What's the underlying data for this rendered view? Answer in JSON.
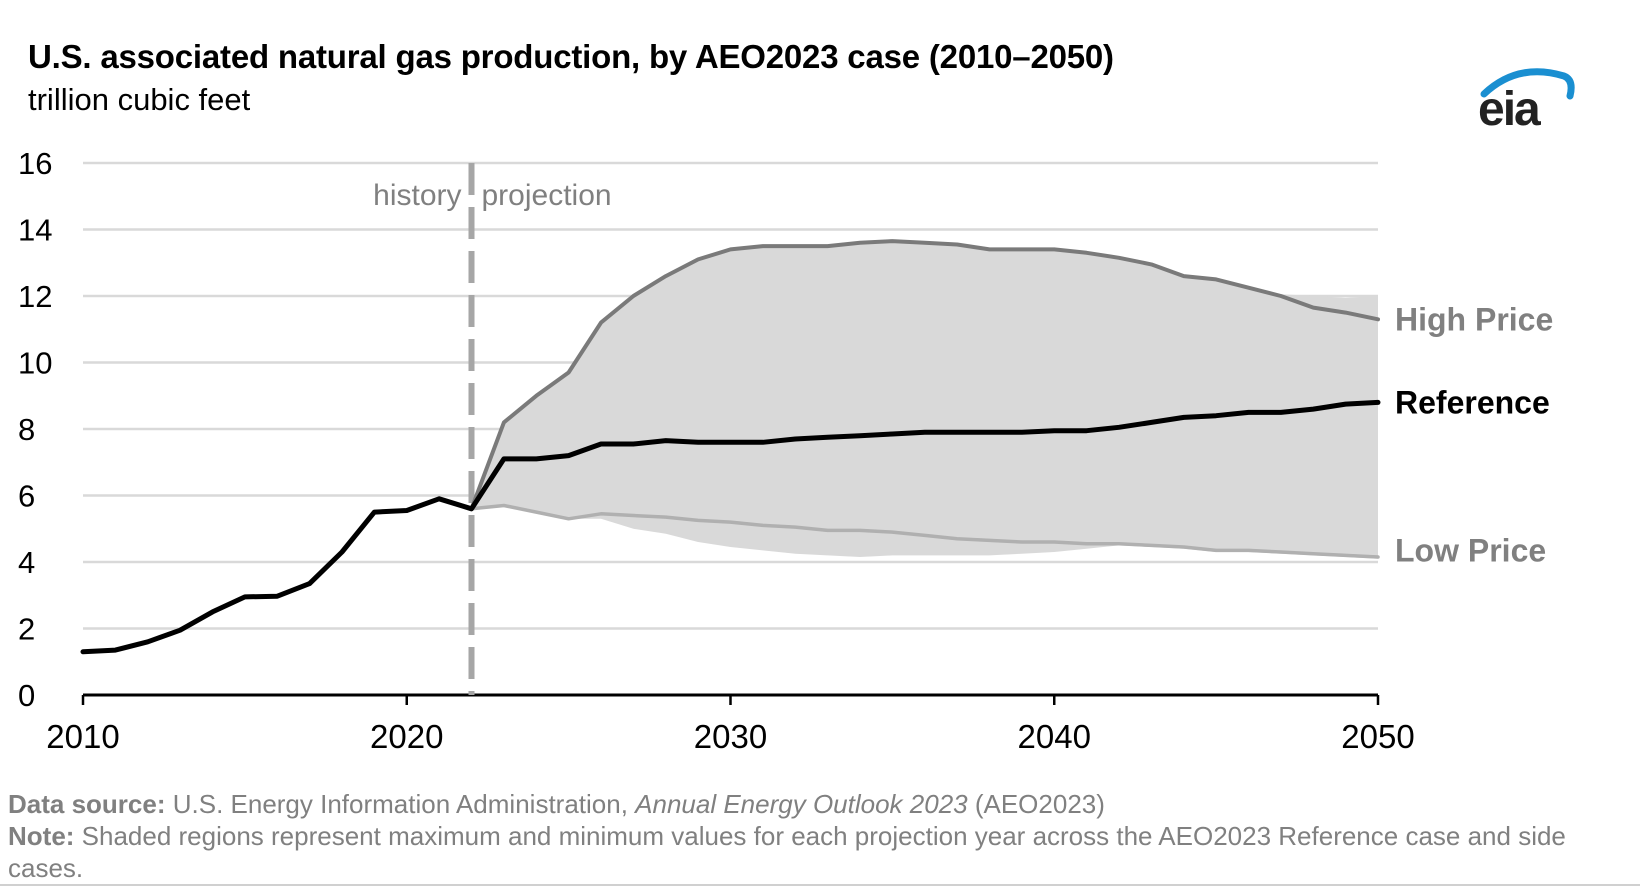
{
  "chart_data": {
    "type": "line",
    "title": "U.S. associated natural gas production, by AEO2023 case (2010–2050)",
    "subtitle": "trillion cubic feet",
    "xlabel": "",
    "ylabel": "",
    "xlim": [
      2010,
      2050
    ],
    "ylim": [
      0,
      16
    ],
    "x_ticks": [
      2010,
      2020,
      2030,
      2040,
      2050
    ],
    "y_ticks": [
      0,
      2,
      4,
      6,
      8,
      10,
      12,
      14,
      16
    ],
    "grid": true,
    "divider": {
      "x": 2022,
      "left_label": "history",
      "right_label": "projection"
    },
    "shaded_range": {
      "x": [
        2022,
        2023,
        2024,
        2025,
        2026,
        2027,
        2028,
        2029,
        2030,
        2031,
        2032,
        2033,
        2034,
        2035,
        2036,
        2037,
        2038,
        2039,
        2040,
        2041,
        2042,
        2043,
        2044,
        2045,
        2046,
        2047,
        2048,
        2049,
        2050
      ],
      "max": [
        5.6,
        8.2,
        9.0,
        9.7,
        11.2,
        12.0,
        12.6,
        13.1,
        13.4,
        13.5,
        13.5,
        13.5,
        13.6,
        13.65,
        13.6,
        13.55,
        13.4,
        13.4,
        13.4,
        13.3,
        13.15,
        12.95,
        12.6,
        12.5,
        12.25,
        12.05,
        12.0,
        11.95,
        12.0
      ],
      "min": [
        5.6,
        5.7,
        5.5,
        5.3,
        5.3,
        5.0,
        4.85,
        4.6,
        4.45,
        4.35,
        4.25,
        4.2,
        4.15,
        4.2,
        4.2,
        4.2,
        4.2,
        4.25,
        4.3,
        4.4,
        4.5,
        4.45,
        4.4,
        4.3,
        4.3,
        4.25,
        4.2,
        4.15,
        4.1
      ]
    },
    "series": [
      {
        "name": "Reference",
        "color": "#000000",
        "x": [
          2010,
          2011,
          2012,
          2013,
          2014,
          2015,
          2016,
          2017,
          2018,
          2019,
          2020,
          2021,
          2022,
          2023,
          2024,
          2025,
          2026,
          2027,
          2028,
          2029,
          2030,
          2031,
          2032,
          2033,
          2034,
          2035,
          2036,
          2037,
          2038,
          2039,
          2040,
          2041,
          2042,
          2043,
          2044,
          2045,
          2046,
          2047,
          2048,
          2049,
          2050
        ],
        "values": [
          1.3,
          1.35,
          1.6,
          1.95,
          2.5,
          2.95,
          2.97,
          3.35,
          4.3,
          5.5,
          5.55,
          5.9,
          5.6,
          7.1,
          7.1,
          7.2,
          7.55,
          7.55,
          7.65,
          7.6,
          7.6,
          7.6,
          7.7,
          7.75,
          7.8,
          7.85,
          7.9,
          7.9,
          7.9,
          7.9,
          7.95,
          7.95,
          8.05,
          8.2,
          8.35,
          8.4,
          8.5,
          8.5,
          8.6,
          8.75,
          8.8
        ]
      },
      {
        "name": "High Price",
        "color": "#7a7a7a",
        "x": [
          2022,
          2023,
          2024,
          2025,
          2026,
          2027,
          2028,
          2029,
          2030,
          2031,
          2032,
          2033,
          2034,
          2035,
          2036,
          2037,
          2038,
          2039,
          2040,
          2041,
          2042,
          2043,
          2044,
          2045,
          2046,
          2047,
          2048,
          2049,
          2050
        ],
        "values": [
          5.6,
          8.2,
          9.0,
          9.7,
          11.2,
          12.0,
          12.6,
          13.1,
          13.4,
          13.5,
          13.5,
          13.5,
          13.6,
          13.65,
          13.6,
          13.55,
          13.4,
          13.4,
          13.4,
          13.3,
          13.15,
          12.95,
          12.6,
          12.5,
          12.25,
          12.0,
          11.65,
          11.5,
          11.3
        ]
      },
      {
        "name": "Low Price",
        "color": "#b0b0b0",
        "x": [
          2022,
          2023,
          2024,
          2025,
          2026,
          2027,
          2028,
          2029,
          2030,
          2031,
          2032,
          2033,
          2034,
          2035,
          2036,
          2037,
          2038,
          2039,
          2040,
          2041,
          2042,
          2043,
          2044,
          2045,
          2046,
          2047,
          2048,
          2049,
          2050
        ],
        "values": [
          5.6,
          5.7,
          5.5,
          5.3,
          5.45,
          5.4,
          5.35,
          5.25,
          5.2,
          5.1,
          5.05,
          4.95,
          4.95,
          4.9,
          4.8,
          4.7,
          4.65,
          4.6,
          4.6,
          4.55,
          4.55,
          4.5,
          4.45,
          4.35,
          4.35,
          4.3,
          4.25,
          4.2,
          4.15
        ]
      }
    ],
    "colors": {
      "shade": "#d9d9d9",
      "grid": "#d9d9d9",
      "divider": "#a6a6a6",
      "label_gray": "#808080"
    }
  },
  "logo": {
    "text": "eia",
    "arc_color": "#1a8fd1"
  },
  "footer": {
    "source_label": "Data source:",
    "source_text_1": " U.S. Energy Information Administration, ",
    "source_italic": "Annual Energy Outlook 2023",
    "source_text_2": " (AEO2023)",
    "note_label": "Note:",
    "note_text": " Shaded regions represent maximum and minimum values for each projection year across the AEO2023 Reference case and side cases."
  }
}
